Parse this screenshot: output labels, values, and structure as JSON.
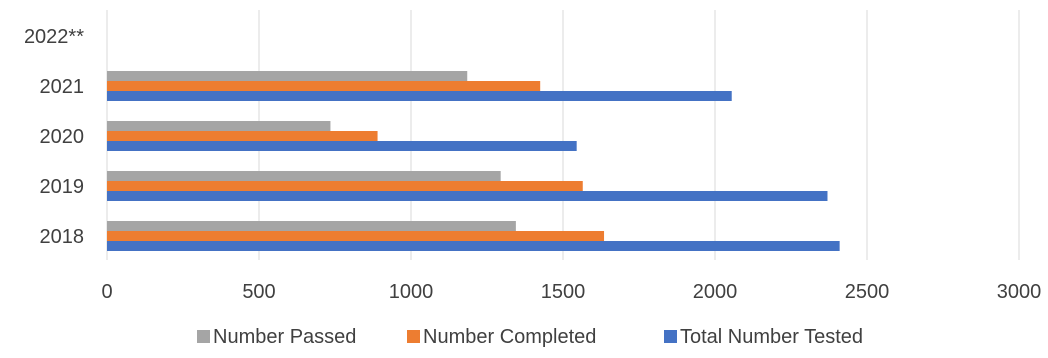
{
  "chart_data": {
    "type": "bar",
    "orientation": "horizontal",
    "title": "",
    "xlabel": "",
    "ylabel": "",
    "categories": [
      "2018",
      "2019",
      "2020",
      "2021",
      "2022**"
    ],
    "xlim": [
      0,
      3000
    ],
    "x_ticks": [
      0,
      500,
      1000,
      1500,
      2000,
      2500,
      3000
    ],
    "grid": "vertical",
    "legend_position": "bottom",
    "series": [
      {
        "name": "Total Number Tested",
        "color": "#4472C4",
        "values": [
          2410,
          2370,
          1545,
          2055,
          null
        ]
      },
      {
        "name": "Number Completed",
        "color": "#ED7D31",
        "values": [
          1635,
          1565,
          890,
          1425,
          null
        ]
      },
      {
        "name": "Number Passed",
        "color": "#A5A5A5",
        "values": [
          1345,
          1295,
          735,
          1185,
          null
        ]
      }
    ],
    "legend_order": [
      "Number Passed",
      "Number Completed",
      "Total Number Tested"
    ]
  }
}
